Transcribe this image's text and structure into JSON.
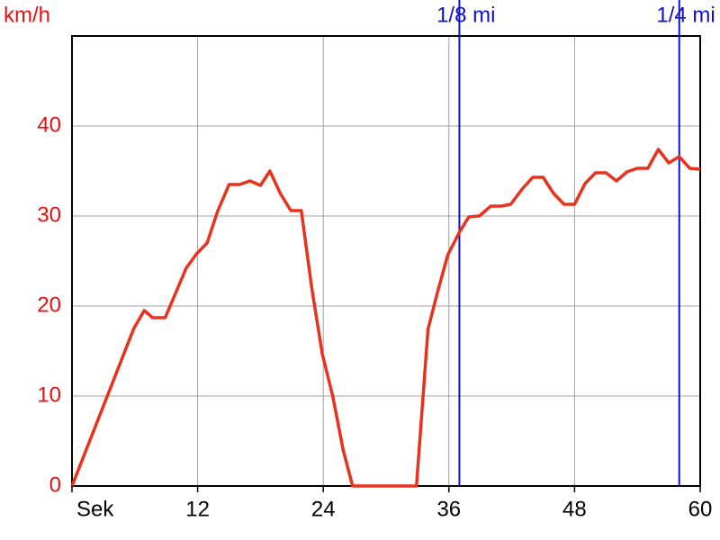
{
  "chart_data": {
    "type": "line",
    "y_label": "km/h",
    "x": [
      0,
      5.9,
      6.9,
      7.7,
      8.9,
      10.9,
      11.9,
      12.9,
      13.9,
      15,
      16,
      17,
      18,
      18.9,
      19.9,
      20.9,
      21.9,
      22.9,
      23.9,
      24.9,
      25.9,
      26.8,
      32.9,
      34,
      34.9,
      35.9,
      37,
      37.9,
      38.9,
      40,
      41,
      41.9,
      43,
      44,
      45,
      46,
      47,
      48,
      49,
      50,
      51,
      52,
      53,
      54,
      55,
      56,
      57,
      58,
      59,
      60
    ],
    "series": [
      {
        "color": "#e8321e",
        "values": [
          0,
          17.5,
          19.5,
          18.7,
          18.7,
          24.2,
          25.8,
          27,
          30.5,
          33.5,
          33.5,
          33.9,
          33.4,
          35,
          32.5,
          30.6,
          30.6,
          22,
          14.7,
          10,
          4,
          0,
          0,
          17.4,
          21.5,
          25.7,
          28.2,
          29.9,
          30,
          31.1,
          31.1,
          31.3,
          33,
          34.3,
          34.3,
          32.5,
          31.3,
          31.3,
          33.6,
          34.8,
          34.8,
          33.9,
          34.9,
          35.3,
          35.3,
          37.4,
          35.9,
          36.6,
          35.3,
          35.2
        ]
      }
    ],
    "xlim": [
      0,
      60
    ],
    "ylim": [
      0,
      50
    ],
    "xticks": [
      {
        "value": 0,
        "label": "Sek"
      },
      12,
      24,
      36,
      48,
      60
    ],
    "yticks": [
      0,
      10,
      20,
      30,
      40
    ],
    "grid": true,
    "markers": [
      {
        "x": 37,
        "label": "1/8 mi",
        "color": "#1010c8"
      },
      {
        "x": 58,
        "label": "1/4 mi",
        "color": "#1010c8"
      }
    ]
  }
}
